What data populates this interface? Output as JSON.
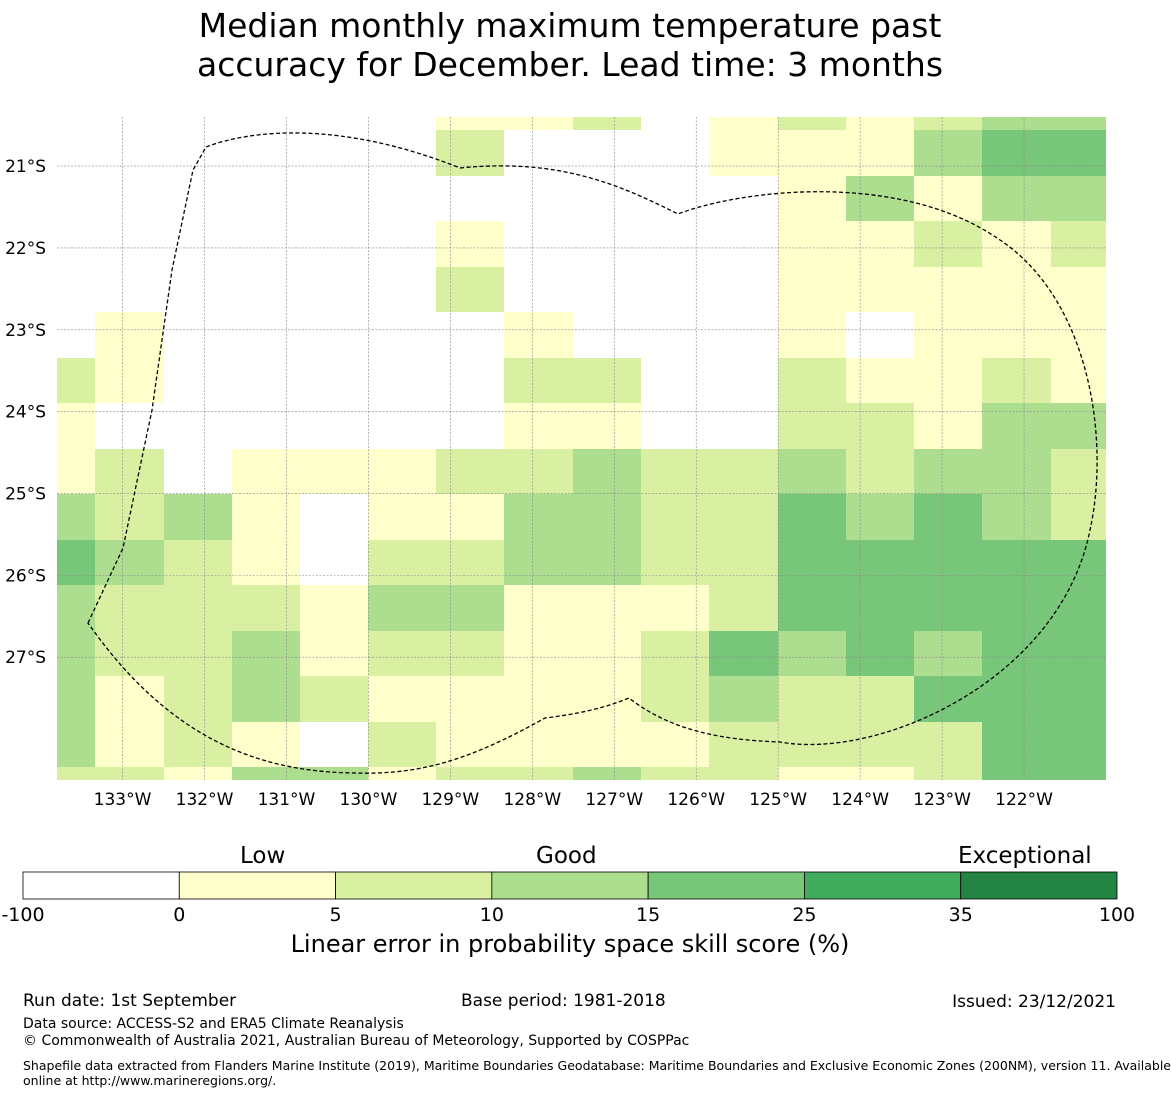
{
  "title": {
    "line1": "Median monthly maximum temperature past",
    "line2": "accuracy for December. Lead time: 3 months"
  },
  "map": {
    "lon_min": -133.8,
    "lon_max": -121.0,
    "lat_top": -20.4,
    "lat_bottom": -28.5,
    "cell_deg": 0.833,
    "lon_ticks": [
      -133,
      -132,
      -131,
      -130,
      -129,
      -128,
      -127,
      -126,
      -125,
      -124,
      -123,
      -122
    ],
    "lon_tick_labels": [
      "133°W",
      "132°W",
      "131°W",
      "130°W",
      "129°W",
      "128°W",
      "127°W",
      "126°W",
      "125°W",
      "124°W",
      "123°W",
      "122°W"
    ],
    "lat_ticks": [
      -21,
      -22,
      -23,
      -24,
      -25,
      -26,
      -27
    ],
    "lat_tick_labels": [
      "21°S",
      "22°S",
      "23°S",
      "24°S",
      "25°S",
      "26°S",
      "27°S"
    ],
    "grid_lines": true,
    "skill_grid": [
      "....0000011100011112233",
      "....1...0001100002233",
      "............0000021122",
      "....0.........000010001",
      "....1.........00000000",
      ".00000.........0000000",
      "100000.0011000000000010",
      "00.......000..000000022",
      "00.......000..001001123",
      "011..0000011221111222211",
      "121000..001122113232212",
      "311100..112221113333333",
      "211110221122111113333333",
      "2111222012221001123332333",
      "11111201000001123323332233",
      "1101201000000012333223333",
      "1012011100000000332233333",
      "1101110100000121113333333"
    ],
    "eez_outline_color": "#000000"
  },
  "legend": {
    "categories": [
      "Low",
      "Good",
      "Exceptional"
    ],
    "bins": [
      {
        "from": -100,
        "to": 0,
        "color": "#ffffff"
      },
      {
        "from": 0,
        "to": 5,
        "color": "#ffffcc"
      },
      {
        "from": 5,
        "to": 10,
        "color": "#d9f0a3"
      },
      {
        "from": 10,
        "to": 15,
        "color": "#addd8e"
      },
      {
        "from": 15,
        "to": 25,
        "color": "#78c679"
      },
      {
        "from": 25,
        "to": 35,
        "color": "#41ab5d"
      },
      {
        "from": 35,
        "to": 100,
        "color": "#238443"
      }
    ],
    "tick_labels": [
      "-100",
      "0",
      "5",
      "10",
      "15",
      "25",
      "35",
      "100"
    ],
    "unit_label": "Linear error in probability space skill score (%)"
  },
  "footer": {
    "run_date": "Run date: 1st September",
    "base_period": "Base period: 1981-2018",
    "issued": "Issued: 23/12/2021",
    "data_source": "Data source: ACCESS-S2 and ERA5 Climate Reanalysis",
    "copyright": "© Commonwealth of Australia 2021, Australian Bureau of Meteorology, Supported by COSPPac",
    "shapefile_line1": "Shapefile data extracted from Flanders Marine Institute (2019), Maritime Boundaries Geodatabase: Maritime Boundaries and Exclusive Economic Zones (200NM), version 11. Available",
    "shapefile_line2": "online at http://www.marineregions.org/."
  }
}
